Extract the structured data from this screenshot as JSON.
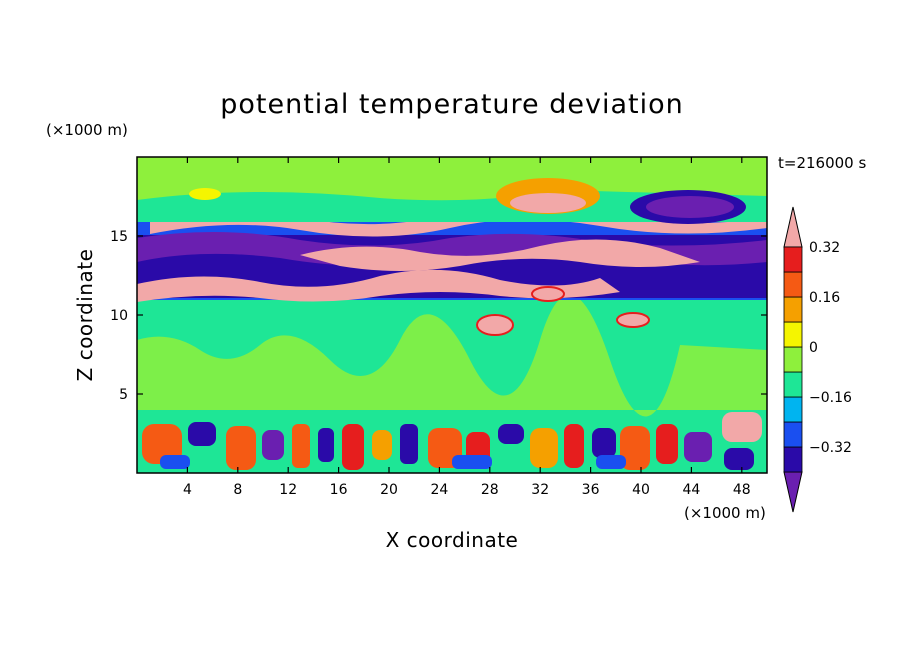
{
  "chart_data": {
    "type": "heatmap",
    "title": "potential temperature deviation",
    "xlabel": "X coordinate",
    "ylabel": "Z coordinate",
    "x_unit": "(×1000 m)",
    "y_unit": "(×1000 m)",
    "time_label": "t=216000 s",
    "xlim": [
      0,
      50
    ],
    "ylim": [
      0,
      20
    ],
    "x_ticks": [
      "4",
      "8",
      "12",
      "16",
      "20",
      "24",
      "28",
      "32",
      "36",
      "40",
      "44",
      "48"
    ],
    "y_ticks": [
      "5",
      "10",
      "15"
    ],
    "colorbar": {
      "levels": [
        -0.4,
        -0.32,
        -0.24,
        -0.16,
        -0.08,
        0,
        0.08,
        0.16,
        0.24,
        0.32,
        0.4
      ],
      "labels": [
        "0.32",
        "0.16",
        "0",
        "−0.16",
        "−0.32"
      ],
      "colors": [
        "#6a1fb0",
        "#2a0aa8",
        "#1a4ff0",
        "#00b4f0",
        "#1ee696",
        "#8ef03c",
        "#f5f500",
        "#f5a000",
        "#f55a14",
        "#e61e1e",
        "#f2a8a8"
      ]
    },
    "field_bands": [
      {
        "z_range": [
          16,
          20
        ],
        "pattern": "mostly 0 to +0.08, warm patch near x=32, cold patch near x=45"
      },
      {
        "z_range": [
          11,
          16
        ],
        "pattern": "alternating strong negative (< -0.4) and strong positive (> 0.4) layers"
      },
      {
        "z_range": [
          3.5,
          11
        ],
        "pattern": "near 0, weak cellular variation"
      },
      {
        "z_range": [
          0,
          3.5
        ],
        "pattern": "small-scale convective cells, values from < -0.4 to > 0.4"
      }
    ]
  }
}
